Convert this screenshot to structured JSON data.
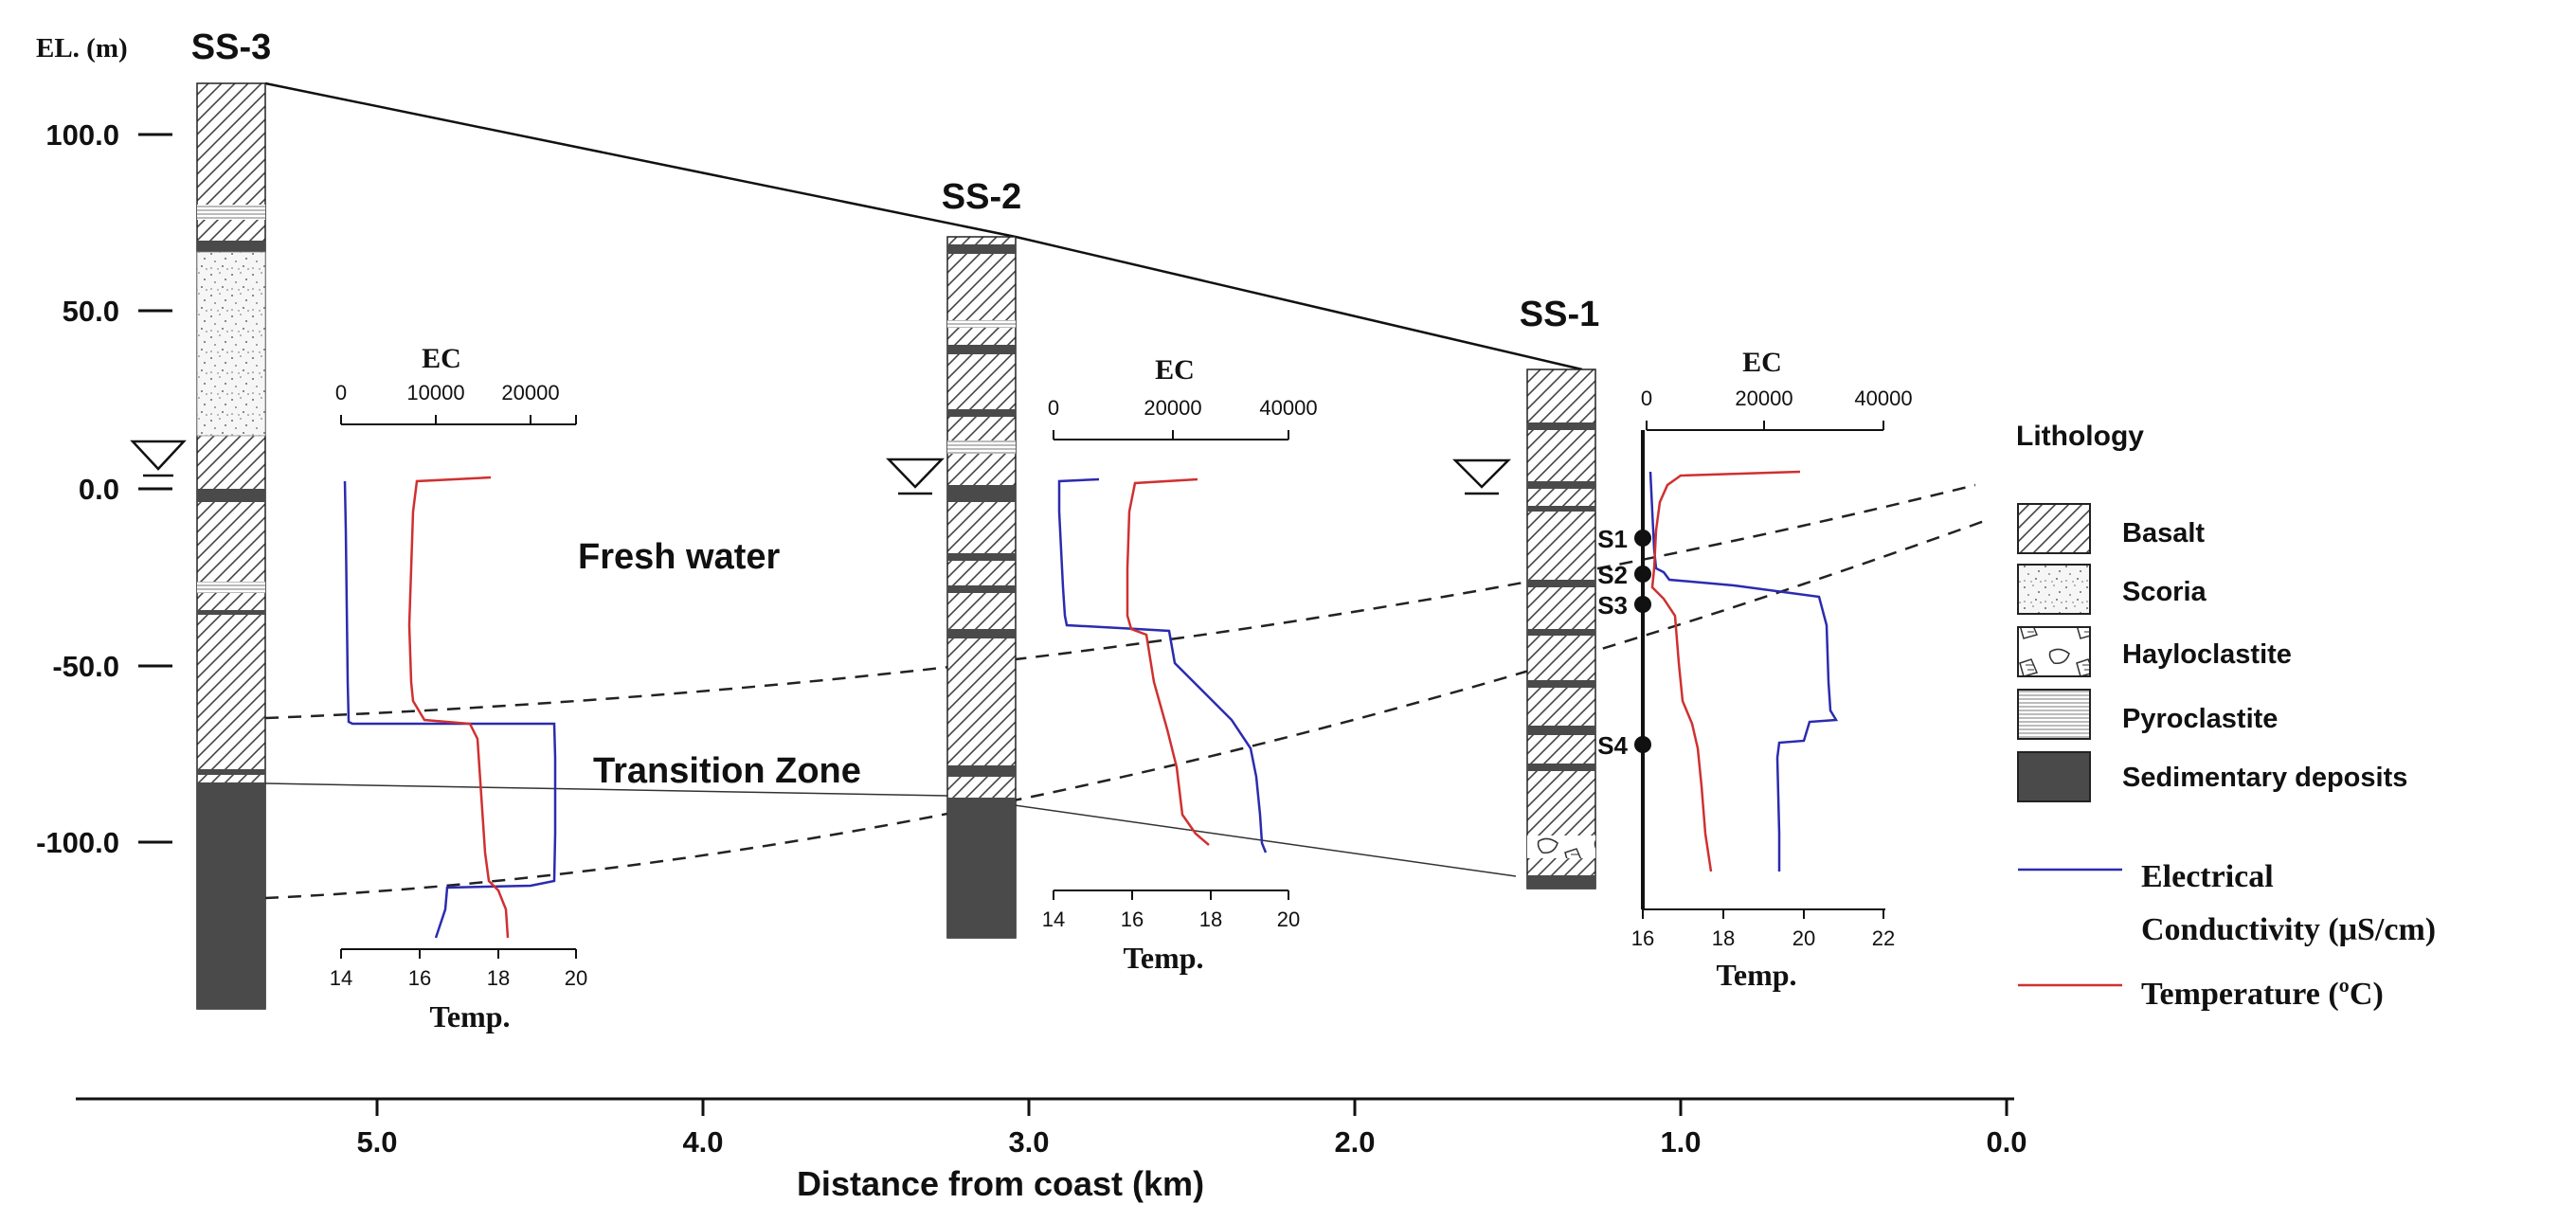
{
  "y_axis": {
    "label": "EL. (m)",
    "ticks": [
      "100.0",
      "50.0",
      "0.0",
      "-50.0",
      "-100.0"
    ]
  },
  "x_axis": {
    "label": "Distance from coast (km)",
    "ticks": [
      "5.0",
      "4.0",
      "3.0",
      "2.0",
      "1.0",
      "0.0"
    ]
  },
  "boreholes": {
    "ss3": {
      "name": "SS-3",
      "distance_km": 5.5,
      "top_el_m": 115,
      "bottom_el_m": -148
    },
    "ss2": {
      "name": "SS-2",
      "distance_km": 3.2,
      "top_el_m": 72,
      "bottom_el_m": -128
    },
    "ss1": {
      "name": "SS-1",
      "distance_km": 1.4,
      "top_el_m": 35,
      "bottom_el_m": -113
    }
  },
  "zones": {
    "fresh_water": "Fresh water",
    "transition": "Transition Zone"
  },
  "sampling_points": {
    "s1": {
      "label": "S1",
      "el_m": -15
    },
    "s2": {
      "label": "S2",
      "el_m": -25
    },
    "s3": {
      "label": "S3",
      "el_m": -33
    },
    "s4": {
      "label": "S4",
      "el_m": -73
    }
  },
  "profiles": {
    "p3": {
      "ec_label": "EC",
      "ec_ticks": [
        "0",
        "10000",
        "20000"
      ],
      "temp_label": "Temp.",
      "temp_ticks": [
        "14",
        "16",
        "18",
        "20"
      ]
    },
    "p2": {
      "ec_label": "EC",
      "ec_ticks": [
        "0",
        "20000",
        "40000"
      ],
      "temp_label": "Temp.",
      "temp_ticks": [
        "14",
        "16",
        "18",
        "20"
      ]
    },
    "p1": {
      "ec_label": "EC",
      "ec_ticks": [
        "0",
        "20000",
        "40000"
      ],
      "temp_label": "Temp.",
      "temp_ticks": [
        "16",
        "18",
        "20",
        "22"
      ]
    }
  },
  "legend": {
    "title": "Lithology",
    "basalt": "Basalt",
    "scoria": "Scoria",
    "hayloclastite": "Hayloclastite",
    "pyroclastite": "Pyroclastite",
    "sedimentary": "Sedimentary deposits",
    "ec_line_1": "Electrical",
    "ec_line_2": "Conductivity  (μS/cm)",
    "temp_line": "Temperature (ºC)"
  },
  "colors": {
    "ec": "#2b2bb0",
    "temp": "#d03030",
    "sediment": "#4a4a4a"
  }
}
